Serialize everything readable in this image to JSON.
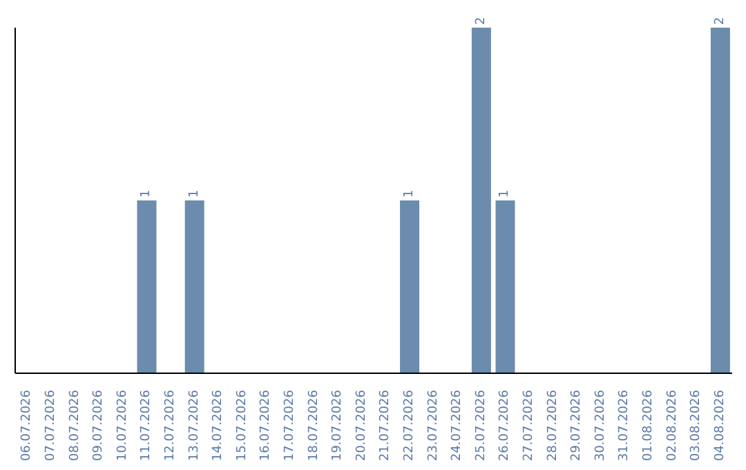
{
  "chart_data": {
    "type": "bar",
    "categories": [
      "06.07.2026",
      "07.07.2026",
      "08.07.2026",
      "09.07.2026",
      "10.07.2026",
      "11.07.2026",
      "12.07.2026",
      "13.07.2026",
      "14.07.2026",
      "15.07.2026",
      "16.07.2026",
      "17.07.2026",
      "18.07.2026",
      "19.07.2026",
      "20.07.2026",
      "21.07.2026",
      "22.07.2026",
      "23.07.2026",
      "24.07.2026",
      "25.07.2026",
      "26.07.2026",
      "27.07.2026",
      "28.07.2026",
      "29.07.2026",
      "30.07.2026",
      "31.07.2026",
      "01.08.2026",
      "02.08.2026",
      "03.08.2026",
      "04.08.2026"
    ],
    "values": [
      0,
      0,
      0,
      0,
      0,
      1,
      0,
      1,
      0,
      0,
      0,
      0,
      0,
      0,
      0,
      0,
      1,
      0,
      0,
      2,
      1,
      0,
      0,
      0,
      0,
      0,
      0,
      0,
      0,
      2
    ],
    "value_labels": [
      null,
      null,
      null,
      null,
      null,
      "1",
      null,
      "1",
      null,
      null,
      null,
      null,
      null,
      null,
      null,
      null,
      "1",
      null,
      null,
      "2",
      "1",
      null,
      null,
      null,
      null,
      null,
      null,
      null,
      null,
      "2"
    ],
    "color": "#6b8cad",
    "grid": false,
    "legend": false
  }
}
